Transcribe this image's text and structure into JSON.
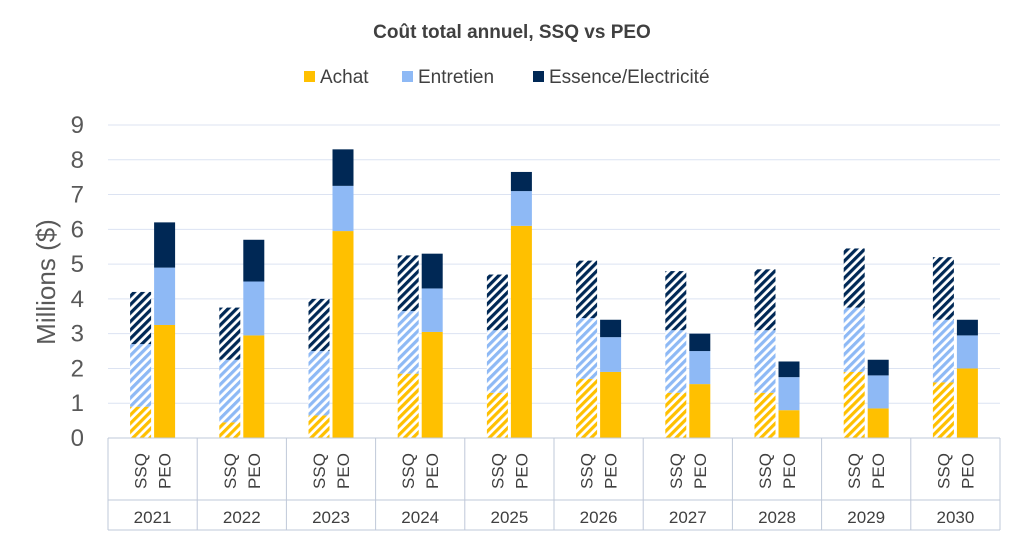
{
  "chart_data": {
    "type": "bar",
    "stacked": true,
    "title": "Coût total annuel, SSQ vs PEO",
    "ylabel": "Millions ($)",
    "ylim": [
      0,
      9
    ],
    "yticks": [
      0,
      1,
      2,
      3,
      4,
      5,
      6,
      7,
      8,
      9
    ],
    "grid": true,
    "legend_position": "top",
    "years": [
      "2021",
      "2022",
      "2023",
      "2024",
      "2025",
      "2026",
      "2027",
      "2028",
      "2029",
      "2030"
    ],
    "groups": [
      "SSQ",
      "PEO"
    ],
    "hatched_group": "SSQ",
    "series": [
      {
        "name": "Achat",
        "color": "#FFC000",
        "SSQ": [
          0.9,
          0.45,
          0.65,
          1.85,
          1.3,
          1.7,
          1.3,
          1.3,
          1.9,
          1.6
        ],
        "PEO": [
          3.25,
          2.95,
          5.95,
          3.05,
          6.1,
          1.9,
          1.55,
          0.8,
          0.85,
          2.0
        ]
      },
      {
        "name": "Entretien",
        "color": "#8EB9F5",
        "SSQ": [
          1.8,
          1.8,
          1.85,
          1.8,
          1.8,
          1.75,
          1.8,
          1.8,
          1.85,
          1.8
        ],
        "PEO": [
          1.65,
          1.55,
          1.3,
          1.25,
          1.0,
          1.0,
          0.95,
          0.95,
          0.95,
          0.95
        ]
      },
      {
        "name": "Essence/Electricité",
        "color": "#002855",
        "SSQ": [
          1.5,
          1.5,
          1.5,
          1.6,
          1.6,
          1.65,
          1.7,
          1.75,
          1.7,
          1.8
        ],
        "PEO": [
          1.3,
          1.2,
          1.05,
          1.0,
          0.55,
          0.5,
          0.5,
          0.45,
          0.45,
          0.45
        ]
      }
    ]
  }
}
